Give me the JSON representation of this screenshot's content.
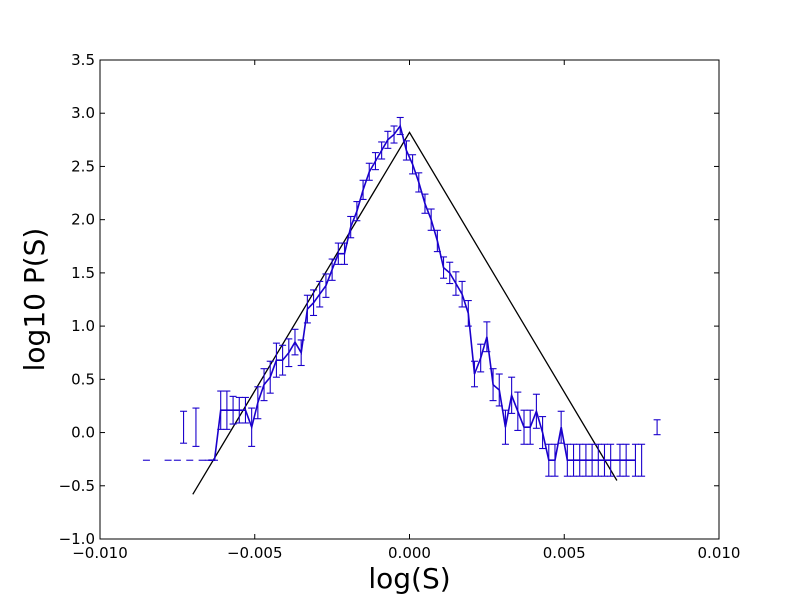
{
  "chart_data": {
    "type": "line",
    "title": "",
    "xlabel": "log(S)",
    "ylabel": "log10 P(S)",
    "xlim": [
      -0.01,
      0.01
    ],
    "ylim": [
      -1.0,
      3.5
    ],
    "xticks": [
      -0.01,
      -0.005,
      0.0,
      0.005,
      0.01
    ],
    "xtick_labels": [
      "−0.010",
      "−0.005",
      "0.000",
      "0.005",
      "0.010"
    ],
    "yticks": [
      -1.0,
      -0.5,
      0.0,
      0.5,
      1.0,
      1.5,
      2.0,
      2.5,
      3.0,
      3.5
    ],
    "ytick_labels": [
      "−1.0",
      "−0.5",
      "0.0",
      "0.5",
      "1.0",
      "1.5",
      "2.0",
      "2.5",
      "3.0",
      "3.5"
    ],
    "grid": false,
    "colors": {
      "data": "#1a00cc",
      "fit": "#000000"
    },
    "series": [
      {
        "style": "line-with-errorbars",
        "x": [
          -0.0085,
          -0.0078,
          -0.0075,
          -0.0073,
          -0.0071,
          -0.0069,
          -0.0067,
          -0.0065,
          -0.0063,
          -0.0061,
          -0.0059,
          -0.0057,
          -0.0055,
          -0.0053,
          -0.0051,
          -0.0049,
          -0.0047,
          -0.0045,
          -0.0043,
          -0.0041,
          -0.0039,
          -0.0037,
          -0.0035,
          -0.0033,
          -0.0031,
          -0.0029,
          -0.0027,
          -0.0025,
          -0.0023,
          -0.0021,
          -0.0019,
          -0.0017,
          -0.0015,
          -0.0013,
          -0.0011,
          -0.0009,
          -0.0007,
          -0.0005,
          -0.0003,
          -0.0001,
          0.0001,
          0.0003,
          0.0005,
          0.0007,
          0.0009,
          0.0011,
          0.0013,
          0.0015,
          0.0017,
          0.0019,
          0.0021,
          0.0023,
          0.0025,
          0.0027,
          0.0029,
          0.0031,
          0.0033,
          0.0035,
          0.0037,
          0.0039,
          0.0041,
          0.0043,
          0.0045,
          0.0047,
          0.0049,
          0.0051,
          0.0053,
          0.0055,
          0.0057,
          0.0059,
          0.0061,
          0.0063,
          0.0065,
          0.0068,
          0.007,
          0.0073,
          0.0075,
          0.008
        ],
        "y": [
          -0.26,
          -0.26,
          -0.26,
          0.05,
          -0.26,
          0.05,
          -0.26,
          -0.26,
          -0.26,
          0.21,
          0.21,
          0.21,
          0.21,
          0.21,
          0.05,
          0.28,
          0.45,
          0.52,
          0.68,
          0.68,
          0.75,
          0.85,
          0.75,
          1.16,
          1.22,
          1.3,
          1.38,
          1.53,
          1.68,
          1.68,
          1.93,
          2.08,
          2.28,
          2.45,
          2.55,
          2.65,
          2.75,
          2.8,
          2.88,
          2.65,
          2.52,
          2.35,
          2.15,
          2.0,
          1.8,
          1.55,
          1.5,
          1.4,
          1.3,
          1.12,
          0.55,
          0.7,
          0.9,
          0.45,
          0.4,
          0.05,
          0.35,
          0.2,
          0.05,
          0.05,
          0.2,
          0.0,
          -0.26,
          -0.26,
          0.05,
          -0.26,
          -0.26,
          -0.26,
          -0.26,
          -0.26,
          -0.26,
          -0.26,
          -0.26,
          -0.26,
          -0.26,
          -0.26,
          -0.26,
          0.05
        ],
        "yerr": [
          0,
          0,
          0,
          0.15,
          0,
          0.18,
          0,
          0,
          0,
          0.18,
          0.18,
          0.13,
          0.12,
          0.12,
          0.18,
          0.15,
          0.15,
          0.15,
          0.16,
          0.14,
          0.13,
          0.12,
          0.12,
          0.13,
          0.12,
          0.12,
          0.11,
          0.1,
          0.1,
          0.1,
          0.1,
          0.09,
          0.09,
          0.08,
          0.08,
          0.08,
          0.08,
          0.08,
          0.08,
          0.09,
          0.09,
          0.09,
          0.09,
          0.1,
          0.1,
          0.1,
          0.1,
          0.11,
          0.12,
          0.12,
          0.12,
          0.13,
          0.14,
          0.15,
          0.15,
          0.16,
          0.17,
          0.18,
          0.16,
          0.16,
          0.16,
          0.15,
          0.15,
          0.15,
          0.15,
          0.15,
          0.15,
          0.15,
          0.15,
          0.15,
          0.15,
          0.15,
          0.15,
          0.15,
          0.15,
          0.15,
          0.15,
          0.07
        ],
        "connect_from_index": 7,
        "connect_to_index": 75
      },
      {
        "style": "fit-line",
        "x": [
          -0.007,
          0.0,
          0.0067
        ],
        "y": [
          -0.58,
          2.82,
          -0.45
        ]
      }
    ]
  }
}
